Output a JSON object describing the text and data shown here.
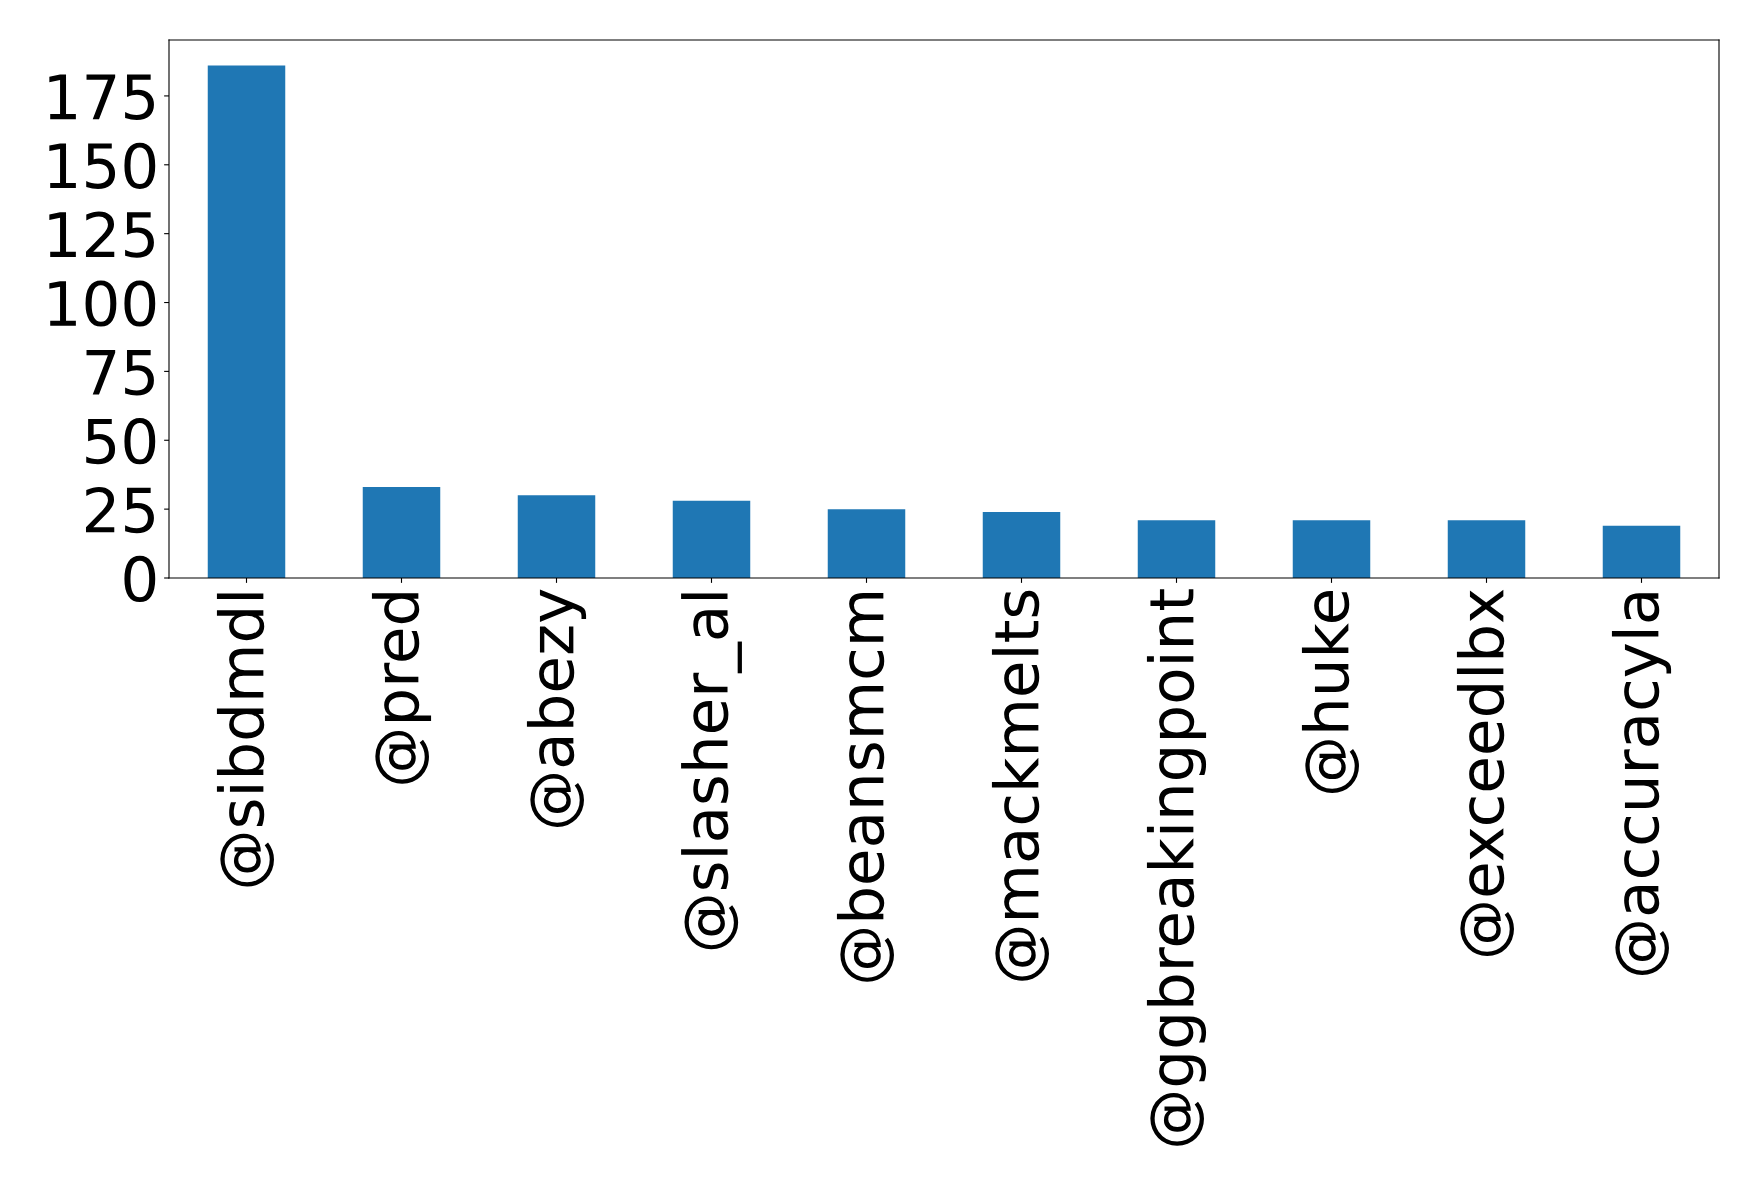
{
  "chart_data": {
    "type": "bar",
    "categories": [
      "@sibdmdl",
      "@pred",
      "@abezy",
      "@slasher_al",
      "@beansmcm",
      "@mackmelts",
      "@ggbreakingpoint",
      "@huke",
      "@exceedlbx",
      "@accuracyla"
    ],
    "values": [
      186,
      33,
      30,
      28,
      25,
      24,
      21,
      21,
      21,
      19
    ],
    "color": "#1f77b4",
    "ylim": [
      0,
      195.3
    ],
    "yticks": [
      0,
      25,
      50,
      75,
      100,
      125,
      150,
      175
    ],
    "grid": false
  }
}
